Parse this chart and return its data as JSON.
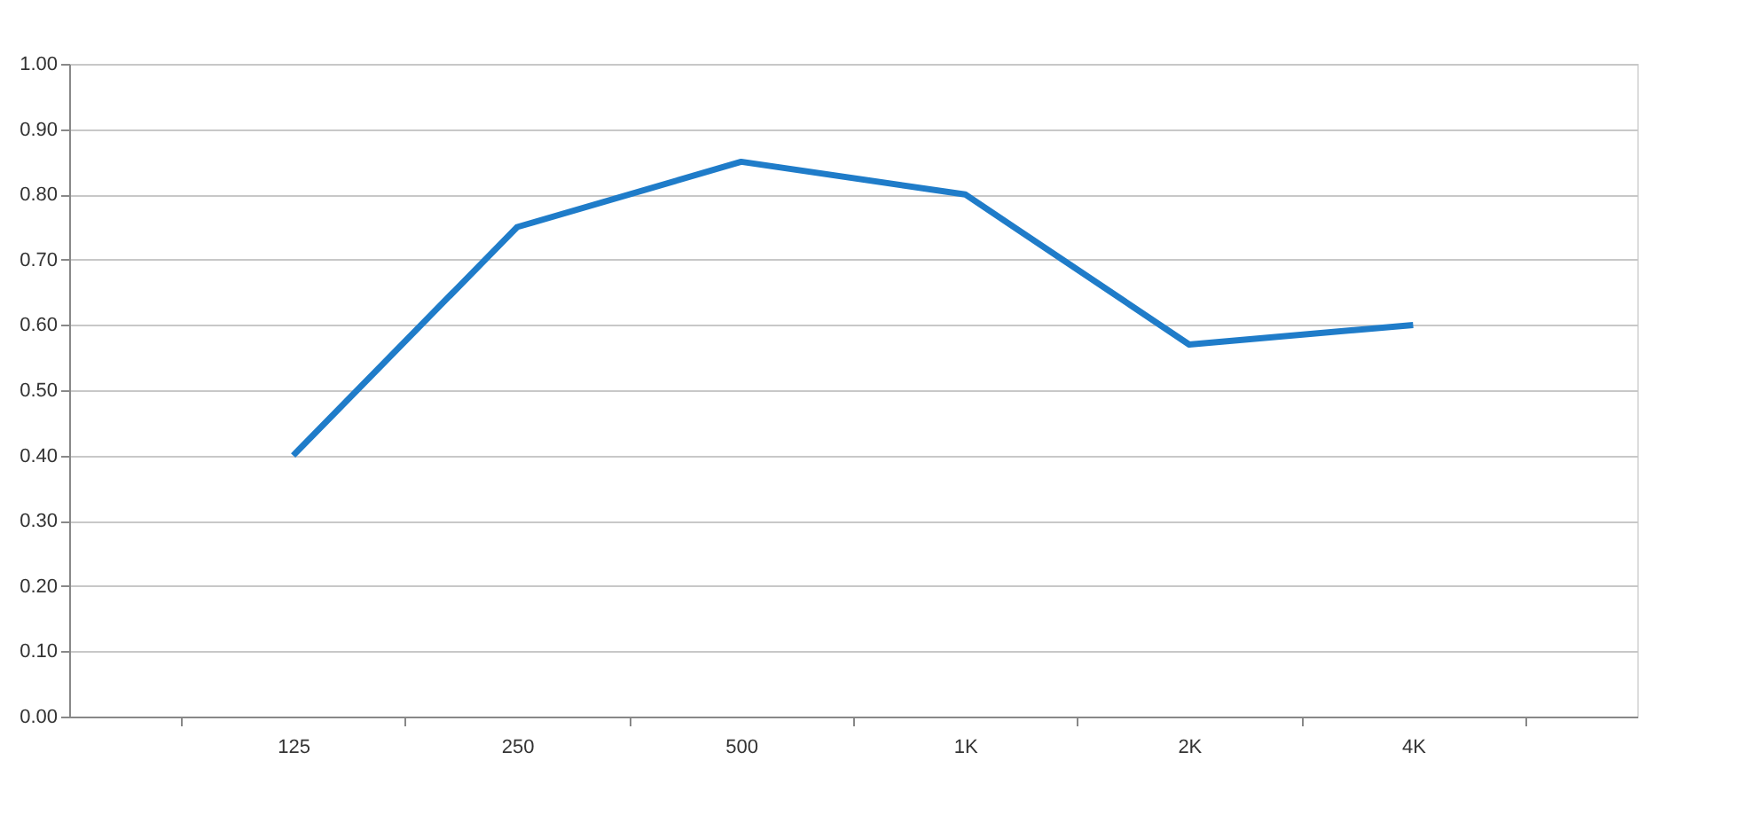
{
  "chart_data": {
    "type": "line",
    "categories": [
      "125",
      "250",
      "500",
      "1K",
      "2K",
      "4K"
    ],
    "series": [
      {
        "color": "#1f7cc9",
        "values": [
          0.4,
          0.75,
          0.85,
          0.8,
          0.57,
          0.6
        ]
      }
    ],
    "ylim": [
      0,
      1
    ],
    "yticks": [
      {
        "value": 0,
        "label": "0.00"
      },
      {
        "value": 0.1,
        "label": "0.10"
      },
      {
        "value": 0.2,
        "label": "0.20"
      },
      {
        "value": 0.3,
        "label": "0.30"
      },
      {
        "value": 0.4,
        "label": "0.40"
      },
      {
        "value": 0.5,
        "label": "0.50"
      },
      {
        "value": 0.6,
        "label": "0.60"
      },
      {
        "value": 0.7,
        "label": "0.70"
      },
      {
        "value": 0.8,
        "label": "0.80"
      },
      {
        "value": 0.9,
        "label": "0.90"
      },
      {
        "value": 1,
        "label": "1.00"
      }
    ],
    "grid": "y",
    "marker": "none",
    "line_style": "solid"
  }
}
